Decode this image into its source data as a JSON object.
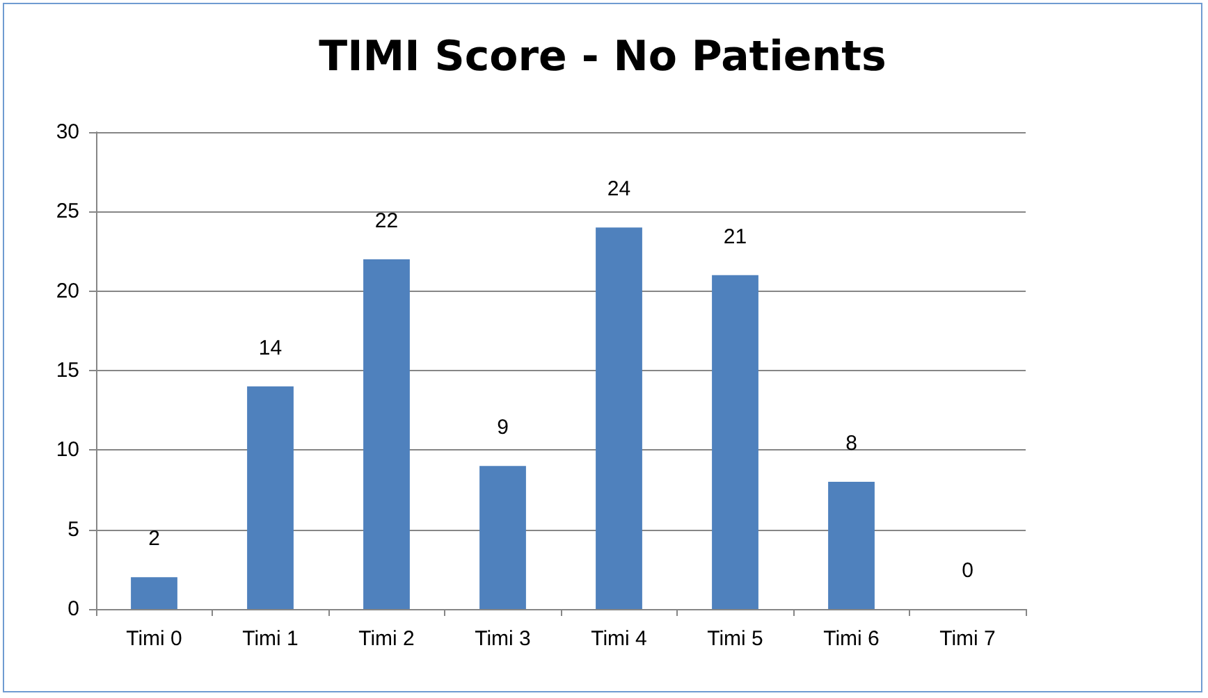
{
  "chart_data": {
    "type": "bar",
    "title": "TIMI Score - No Patients",
    "categories": [
      "Timi 0",
      "Timi 1",
      "Timi 2",
      "Timi 3",
      "Timi 4",
      "Timi 5",
      "Timi 6",
      "Timi 7"
    ],
    "values": [
      2,
      14,
      22,
      9,
      24,
      21,
      8,
      0
    ],
    "color": "#4f81bd",
    "ylim": [
      0,
      30
    ],
    "yticks": [
      0,
      5,
      10,
      15,
      20,
      25,
      30
    ],
    "grid": "y",
    "data_labels": true
  }
}
